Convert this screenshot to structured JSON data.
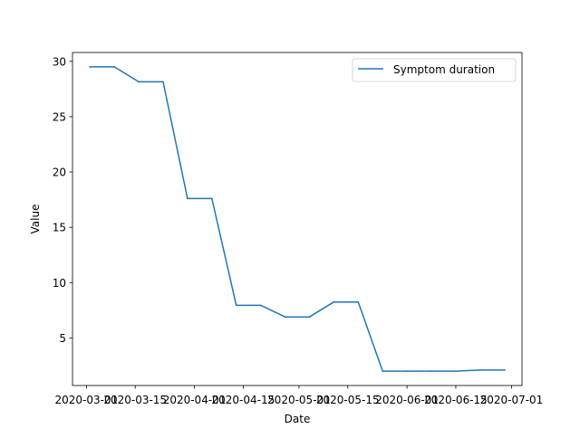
{
  "chart_data": {
    "type": "line",
    "title": "",
    "xlabel": "Date",
    "ylabel": "Value",
    "x": [
      "2020-03-02",
      "2020-03-09",
      "2020-03-16",
      "2020-03-23",
      "2020-03-30",
      "2020-04-06",
      "2020-04-13",
      "2020-04-20",
      "2020-04-27",
      "2020-05-04",
      "2020-05-11",
      "2020-05-18",
      "2020-05-25",
      "2020-06-01",
      "2020-06-08",
      "2020-06-15",
      "2020-06-22",
      "2020-06-29"
    ],
    "series": [
      {
        "name": "Symptom duration",
        "color": "#1f77b4",
        "values": [
          29.5,
          29.5,
          28.15,
          28.15,
          17.6,
          17.6,
          7.95,
          7.95,
          6.9,
          6.9,
          8.25,
          8.25,
          2.0,
          2.0,
          2.0,
          2.0,
          2.1,
          2.1
        ]
      }
    ],
    "xlim": [
      "2020-02-26",
      "2020-07-04"
    ],
    "ylim": [
      0.7,
      30.8
    ],
    "xticks": [
      "2020-03-01",
      "2020-03-15",
      "2020-04-01",
      "2020-04-15",
      "2020-05-01",
      "2020-05-15",
      "2020-06-01",
      "2020-06-15",
      "2020-07-01"
    ],
    "yticks": [
      5,
      10,
      15,
      20,
      25,
      30
    ],
    "grid": false,
    "legend_position": "top-right"
  }
}
